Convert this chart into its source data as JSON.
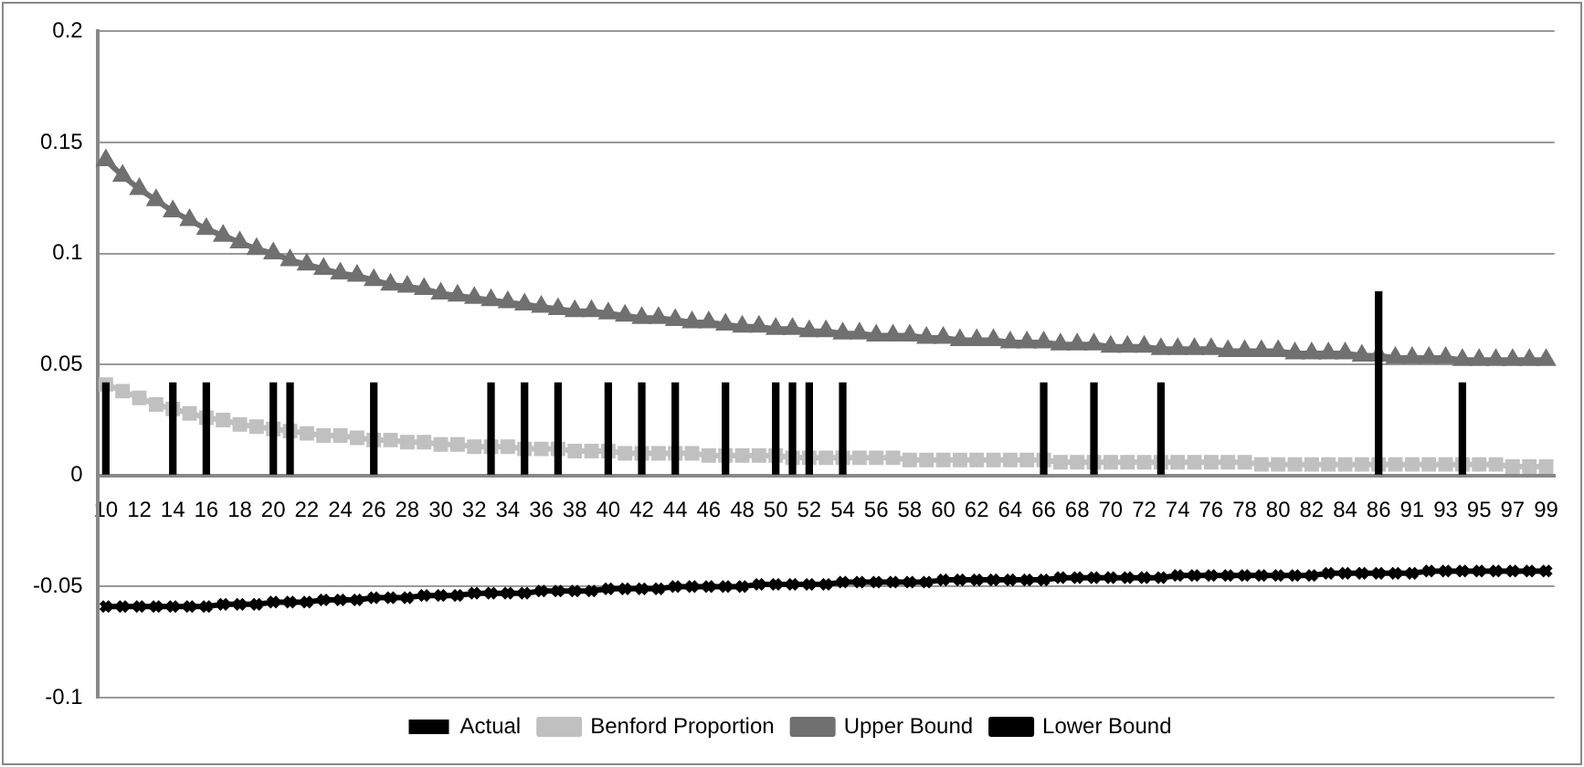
{
  "chart_data": {
    "type": "bar",
    "categories": [
      "10",
      null,
      "12",
      null,
      "14",
      null,
      "16",
      null,
      "18",
      null,
      "20",
      null,
      "22",
      null,
      "24",
      null,
      "26",
      null,
      "28",
      null,
      "30",
      null,
      "32",
      null,
      "34",
      null,
      "36",
      null,
      "38",
      null,
      "40",
      null,
      "42",
      null,
      "44",
      null,
      "46",
      null,
      "48",
      null,
      "50",
      null,
      "52",
      null,
      "54",
      null,
      "56",
      null,
      "58",
      null,
      "60",
      null,
      "62",
      null,
      "64",
      null,
      "66",
      null,
      "68",
      null,
      "70",
      null,
      "72",
      null,
      "74",
      null,
      "76",
      null,
      "78",
      null,
      "80",
      null,
      "82",
      null,
      "84",
      null,
      "86",
      null,
      "91",
      null,
      "93",
      null,
      "95",
      null,
      "97",
      null,
      "99"
    ],
    "series": [
      {
        "name": "Actual",
        "color": "#000000",
        "values": [
          0.042,
          0,
          0,
          0,
          0.042,
          0,
          0.042,
          0,
          0,
          0,
          0.042,
          0.042,
          0,
          0,
          0,
          0,
          0.042,
          0,
          0,
          0,
          0,
          0,
          0,
          0.042,
          0,
          0.042,
          0,
          0.042,
          0,
          0,
          0.042,
          0,
          0.042,
          0,
          0.042,
          0,
          0,
          0.042,
          0,
          0,
          0.042,
          0.042,
          0.042,
          0,
          0.042,
          0,
          0,
          0,
          0,
          0,
          0,
          0,
          0,
          0,
          0,
          0,
          0.042,
          0,
          0,
          0.042,
          0,
          0,
          0,
          0.042,
          0,
          0,
          0,
          0,
          0,
          0,
          0,
          0,
          0,
          0,
          0,
          0,
          0.083,
          0,
          0,
          0,
          0,
          0.042,
          0,
          0,
          0,
          0,
          0
        ]
      },
      {
        "name": "Benford Proportion",
        "type": "line",
        "color": "#c0c0c0",
        "marker": "square",
        "values": [
          0.041,
          0.038,
          0.035,
          0.032,
          0.03,
          0.028,
          0.026,
          0.025,
          0.023,
          0.022,
          0.021,
          0.02,
          0.019,
          0.018,
          0.018,
          0.017,
          0.016,
          0.016,
          0.015,
          0.015,
          0.014,
          0.014,
          0.013,
          0.013,
          0.013,
          0.012,
          0.012,
          0.012,
          0.011,
          0.011,
          0.011,
          0.01,
          0.01,
          0.01,
          0.01,
          0.01,
          0.009,
          0.009,
          0.009,
          0.009,
          0.009,
          0.008,
          0.008,
          0.008,
          0.008,
          0.008,
          0.008,
          0.008,
          0.007,
          0.007,
          0.007,
          0.007,
          0.007,
          0.007,
          0.007,
          0.007,
          0.007,
          0.006,
          0.006,
          0.006,
          0.006,
          0.006,
          0.006,
          0.006,
          0.006,
          0.006,
          0.006,
          0.006,
          0.006,
          0.005,
          0.005,
          0.005,
          0.005,
          0.005,
          0.005,
          0.005,
          0.005,
          0.005,
          0.005,
          0.005,
          0.005,
          0.005,
          0.005,
          0.005,
          0.004,
          0.004,
          0.004
        ]
      },
      {
        "name": "Upper Bound",
        "type": "line",
        "color": "#707070",
        "marker": "triangle",
        "values": [
          0.142,
          0.135,
          0.129,
          0.124,
          0.119,
          0.115,
          0.111,
          0.108,
          0.105,
          0.102,
          0.1,
          0.097,
          0.095,
          0.093,
          0.091,
          0.09,
          0.088,
          0.086,
          0.085,
          0.084,
          0.082,
          0.081,
          0.08,
          0.079,
          0.078,
          0.077,
          0.076,
          0.075,
          0.074,
          0.074,
          0.073,
          0.072,
          0.071,
          0.071,
          0.07,
          0.069,
          0.069,
          0.068,
          0.067,
          0.067,
          0.066,
          0.066,
          0.065,
          0.065,
          0.064,
          0.064,
          0.063,
          0.063,
          0.063,
          0.062,
          0.062,
          0.061,
          0.061,
          0.061,
          0.06,
          0.06,
          0.06,
          0.059,
          0.059,
          0.059,
          0.058,
          0.058,
          0.058,
          0.057,
          0.057,
          0.057,
          0.057,
          0.056,
          0.056,
          0.056,
          0.056,
          0.055,
          0.055,
          0.055,
          0.055,
          0.054,
          0.054,
          0.053,
          0.053,
          0.053,
          0.053,
          0.052,
          0.052,
          0.052,
          0.052,
          0.052,
          0.052
        ]
      },
      {
        "name": "Lower Bound",
        "type": "line",
        "color": "#000000",
        "marker": "cross",
        "values": [
          -0.059,
          -0.059,
          -0.059,
          -0.059,
          -0.059,
          -0.059,
          -0.059,
          -0.058,
          -0.058,
          -0.058,
          -0.057,
          -0.057,
          -0.057,
          -0.056,
          -0.056,
          -0.056,
          -0.055,
          -0.055,
          -0.055,
          -0.054,
          -0.054,
          -0.054,
          -0.053,
          -0.053,
          -0.053,
          -0.053,
          -0.052,
          -0.052,
          -0.052,
          -0.052,
          -0.051,
          -0.051,
          -0.051,
          -0.051,
          -0.05,
          -0.05,
          -0.05,
          -0.05,
          -0.05,
          -0.049,
          -0.049,
          -0.049,
          -0.049,
          -0.049,
          -0.048,
          -0.048,
          -0.048,
          -0.048,
          -0.048,
          -0.048,
          -0.047,
          -0.047,
          -0.047,
          -0.047,
          -0.047,
          -0.047,
          -0.047,
          -0.046,
          -0.046,
          -0.046,
          -0.046,
          -0.046,
          -0.046,
          -0.046,
          -0.045,
          -0.045,
          -0.045,
          -0.045,
          -0.045,
          -0.045,
          -0.045,
          -0.045,
          -0.045,
          -0.044,
          -0.044,
          -0.044,
          -0.044,
          -0.044,
          -0.044,
          -0.043,
          -0.043,
          -0.043,
          -0.043,
          -0.043,
          -0.043,
          -0.043,
          -0.043
        ]
      }
    ],
    "ylim": [
      -0.1,
      0.2
    ],
    "yticks": [
      {
        "value": -0.1,
        "label": "-0.1"
      },
      {
        "value": -0.05,
        "label": "-0.05"
      },
      0,
      0.05,
      0.1,
      0.15,
      0.2
    ],
    "grid": "y",
    "legend": "bottom"
  }
}
